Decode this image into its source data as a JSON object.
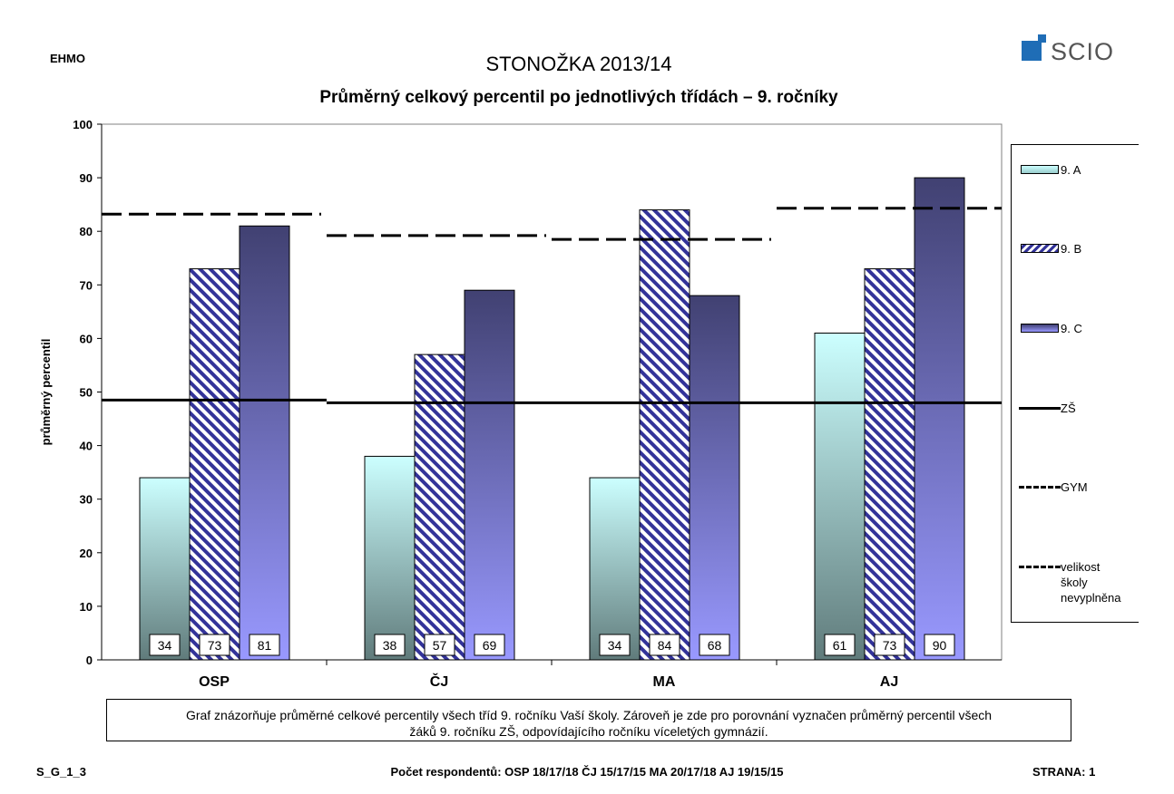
{
  "header": {
    "school": "EHMO",
    "title": "STONOŽKA 2013/14",
    "subtitle": "Průměrný celkový percentil po jednotlivých třídách – 9. ročníky",
    "logo_text": "SCIO"
  },
  "chart_data": {
    "type": "bar",
    "title": "Průměrný celkový percentil po jednotlivých třídách – 9. ročníky",
    "xlabel": "",
    "ylabel": "průměrný percentil",
    "ylim": [
      0,
      100
    ],
    "yticks": [
      "0",
      "10",
      "20",
      "30",
      "40",
      "50",
      "60",
      "70",
      "80",
      "90",
      "100"
    ],
    "categories": [
      "OSP",
      "ČJ",
      "MA",
      "AJ"
    ],
    "series": [
      {
        "name": "9. A",
        "values": [
          34,
          38,
          34,
          61
        ],
        "value_labels": [
          "34",
          "38",
          "34",
          "61"
        ],
        "fill": "gradient-cyan"
      },
      {
        "name": "9. B",
        "values": [
          73,
          57,
          84,
          73
        ],
        "value_labels": [
          "73",
          "57",
          "84",
          "73"
        ],
        "fill": "hatched-navy"
      },
      {
        "name": "9. C",
        "values": [
          81,
          69,
          68,
          90
        ],
        "value_labels": [
          "81",
          "69",
          "68",
          "90"
        ],
        "fill": "gradient-purple"
      }
    ],
    "reference_lines": [
      {
        "name": "ZŠ",
        "style": "solid",
        "values": [
          48.5,
          48.0,
          48.0,
          48.0
        ]
      },
      {
        "name": "GYM",
        "style": "long-dash",
        "values": [
          83.2,
          79.2,
          78.5,
          84.3
        ]
      }
    ],
    "legend_extra": {
      "name": "velikost školy nevyplněna",
      "style": "short-dash"
    },
    "legend_position": "right",
    "grid": false,
    "colors": {
      "series_a_top": "#ccffff",
      "series_a_bottom": "#607b7b",
      "series_b_hatch": "#333399",
      "series_c_top": "#414172",
      "series_c_bottom": "#9999ff",
      "plot_bg": "#ffffff"
    }
  },
  "legend": {
    "a": "9. A",
    "b": "9. B",
    "c": "9. C",
    "zs": "ZŠ",
    "gym": "GYM",
    "size_1": "velikost",
    "size_2": "školy",
    "size_3": "nevyplněna"
  },
  "note": {
    "line1": "Graf znázorňuje průměrné celkové percentily všech tříd 9. ročníku Vaší školy. Zároveň je zde pro porovnání vyznačen průměrný percentil všech",
    "line2": "žáků 9. ročníku ZŠ, odpovídajícího ročníku víceletých gymnázií."
  },
  "footer": {
    "code": "S_G_1_3",
    "respondents": "Počet respondentů: OSP 18/17/18 ČJ 15/17/15 MA 20/17/18 AJ 19/15/15",
    "page": "STRANA: 1"
  }
}
